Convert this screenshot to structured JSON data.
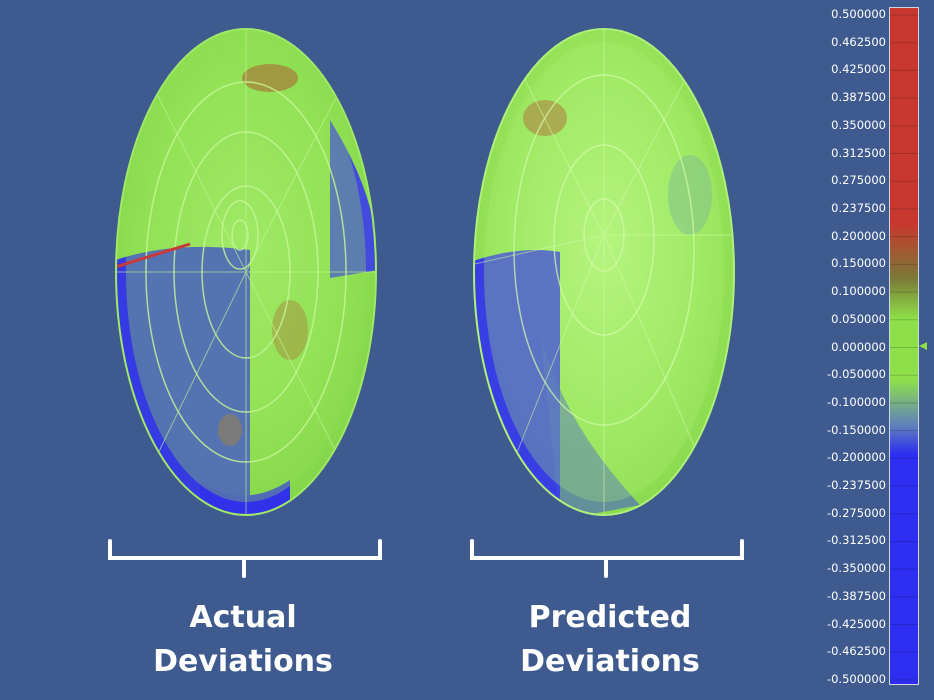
{
  "captions": {
    "actual_line1": "Actual",
    "actual_line2": "Deviations",
    "predicted_line1": "Predicted",
    "predicted_line2": "Deviations"
  },
  "colors": {
    "background": "#3e5a8e",
    "positive": "#c8382e",
    "zero": "#8ee04a",
    "negative": "#2e2ef0"
  },
  "color_scale": {
    "ticks": [
      "0.500000",
      "0.462500",
      "0.425000",
      "0.387500",
      "0.350000",
      "0.312500",
      "0.275000",
      "0.237500",
      "0.200000",
      "0.150000",
      "0.100000",
      "0.050000",
      "0.000000",
      "-0.050000",
      "-0.100000",
      "-0.150000",
      "-0.200000",
      "-0.237500",
      "-0.275000",
      "-0.312500",
      "-0.350000",
      "-0.387500",
      "-0.425000",
      "-0.462500",
      "-0.500000"
    ],
    "min": -0.5,
    "max": 0.5
  }
}
